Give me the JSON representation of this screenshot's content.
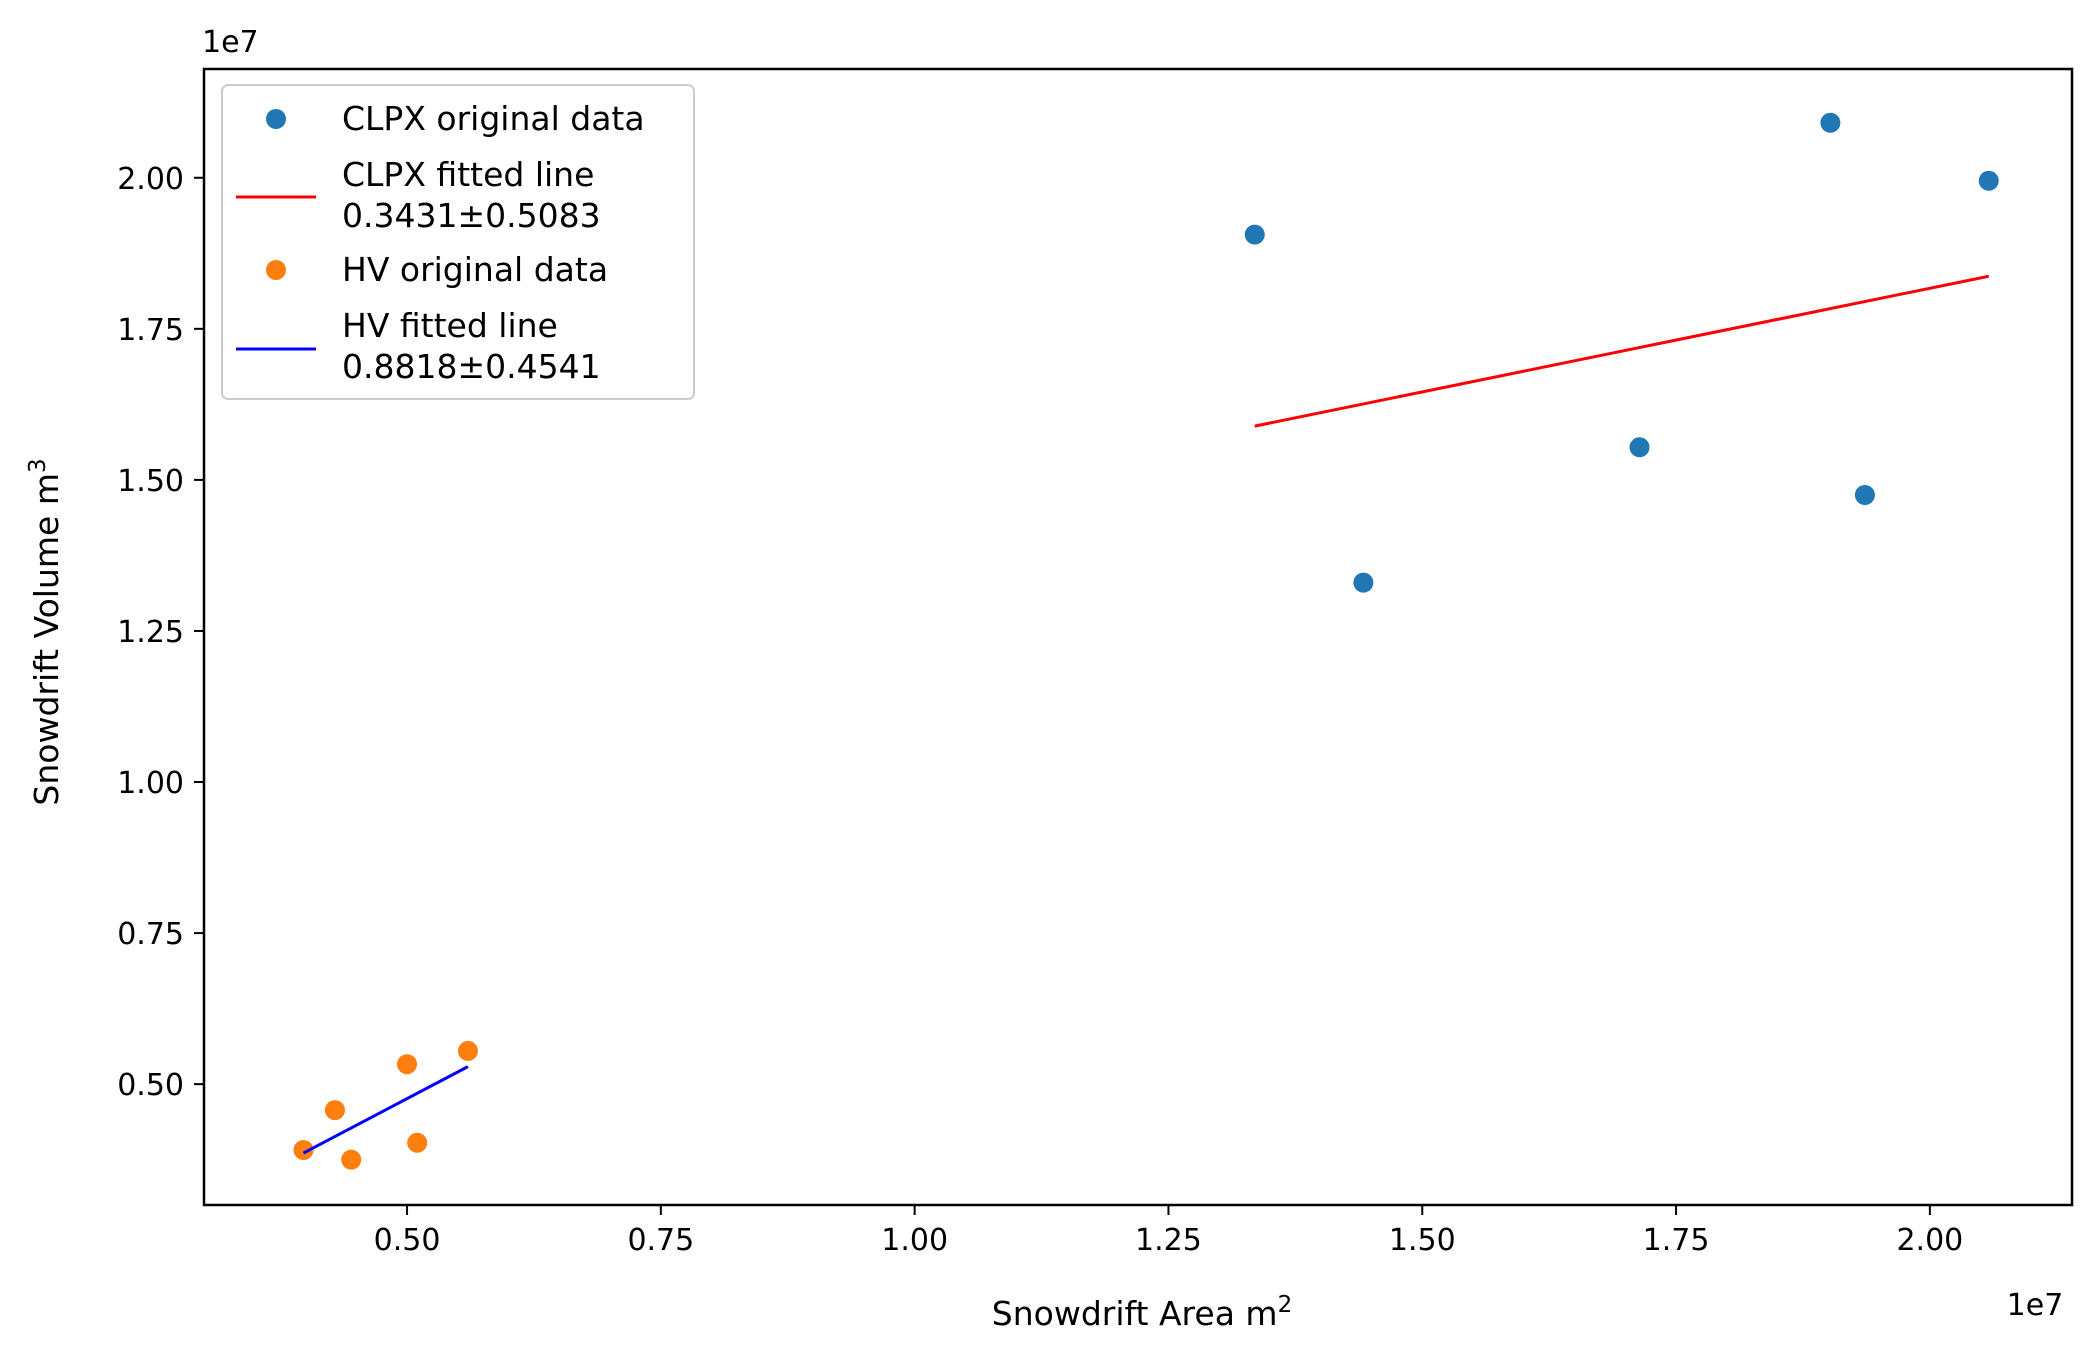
{
  "chart_data": {
    "type": "scatter",
    "xlabel": "Snowdrift Area m",
    "xlabel_sup": "2",
    "ylabel": "Snowdrift Volume m",
    "ylabel_sup": "3",
    "x_offset_label": "1e7",
    "y_offset_label": "1e7",
    "xlim": [
      0.3,
      2.14
    ],
    "ylim": [
      0.3,
      2.18
    ],
    "x_scale_note": "values in units of 1e7",
    "xticks": [
      0.5,
      0.75,
      1.0,
      1.25,
      1.5,
      1.75,
      2.0
    ],
    "xtick_labels": [
      "0.50",
      "0.75",
      "1.00",
      "1.25",
      "1.50",
      "1.75",
      "2.00"
    ],
    "yticks": [
      0.5,
      0.75,
      1.0,
      1.25,
      1.5,
      1.75,
      2.0
    ],
    "ytick_labels": [
      "0.50",
      "0.75",
      "1.00",
      "1.25",
      "1.50",
      "1.75",
      "2.00"
    ],
    "grid": false,
    "legend_position": "top-left",
    "series": [
      {
        "name": "CLPX original data",
        "kind": "points",
        "color": "#1f77b4",
        "x": [
          1.335,
          1.442,
          1.714,
          1.902,
          1.936,
          2.058
        ],
        "y": [
          1.906,
          1.33,
          1.554,
          2.091,
          1.475,
          1.995
        ]
      },
      {
        "name": "CLPX fitted line",
        "name_line2": "0.3431±0.5083",
        "kind": "line",
        "color": "#ff0000",
        "x": [
          1.335,
          2.058
        ],
        "y": [
          1.589,
          1.837
        ]
      },
      {
        "name": "HV original data",
        "kind": "points",
        "color": "#ff7f0e",
        "x": [
          0.398,
          0.429,
          0.445,
          0.5,
          0.51,
          0.56
        ],
        "y": [
          0.391,
          0.457,
          0.375,
          0.533,
          0.403,
          0.555
        ]
      },
      {
        "name": "HV fitted line",
        "name_line2": "0.8818±0.4541",
        "kind": "line",
        "color": "#0000ff",
        "x": [
          0.398,
          0.56
        ],
        "y": [
          0.386,
          0.529
        ]
      }
    ]
  }
}
